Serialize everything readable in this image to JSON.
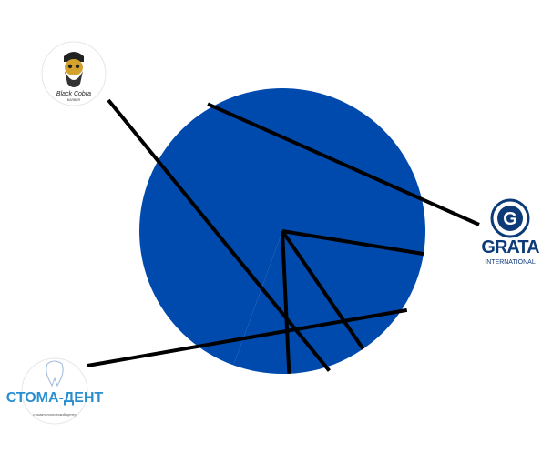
{
  "chart_data": {
    "type": "pie",
    "color": "#004aad",
    "slices": [
      {
        "label": "GRATA",
        "value": 72.0,
        "logo": "grata-logo"
      },
      {
        "label": "СТОМА-ДЕНТ",
        "value": 12.9,
        "logo": "stoma-dent-logo"
      },
      {
        "label": "Black Cobra",
        "value": 8.8,
        "logo": "black-cobra-logo"
      },
      {
        "label": "",
        "value": 6.3,
        "logo": ""
      }
    ],
    "grid": false,
    "legend": "none"
  },
  "logos": {
    "black_cobra": {
      "name": "Black Cobra",
      "sub": "BARBER"
    },
    "grata": {
      "name": "GRATA",
      "sub": "INTERNATIONAL"
    },
    "stoma": {
      "name": "СТОМА-ДЕНТ",
      "sub": "стоматологический центр"
    }
  }
}
